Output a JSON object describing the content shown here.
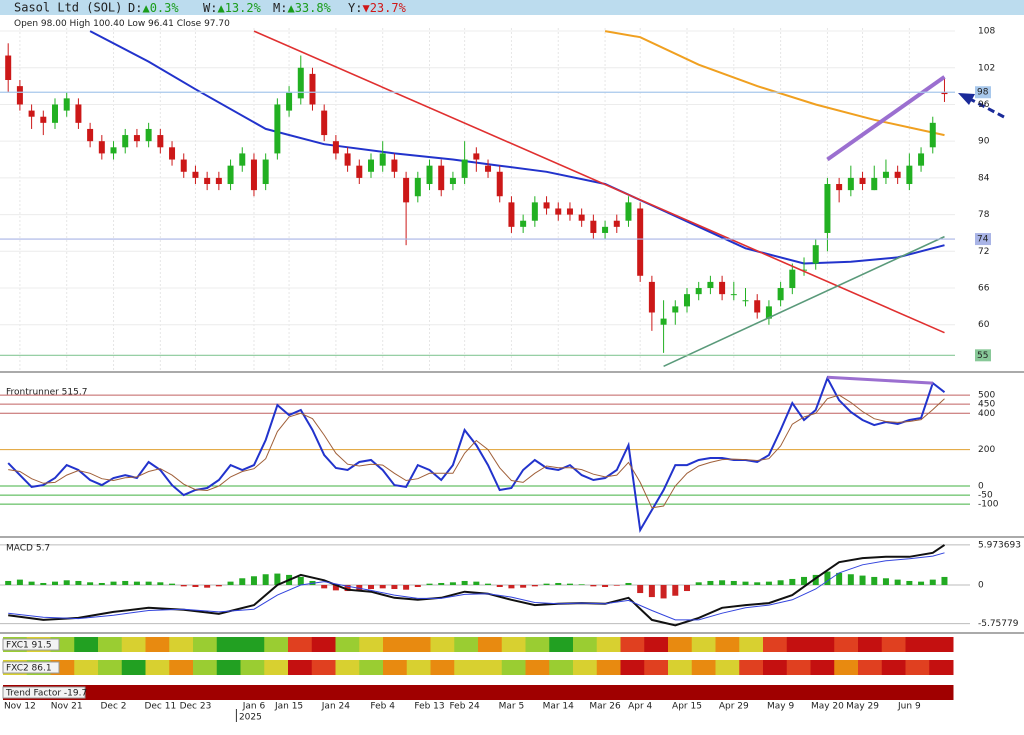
{
  "header": {
    "title": "Sasol Ltd (SOL)",
    "changes": [
      {
        "label": "D:",
        "arrow": "▲",
        "value": "0.3%",
        "color": "#1a9c1a"
      },
      {
        "label": "W:",
        "arrow": "▲",
        "value": "13.2%",
        "color": "#1a9c1a"
      },
      {
        "label": "M:",
        "arrow": "▲",
        "value": "33.8%",
        "color": "#1a9c1a"
      },
      {
        "label": "Y:",
        "arrow": "▼",
        "value": "23.7%",
        "color": "#d01818"
      }
    ],
    "ohlc": [
      "Open 98.00",
      "High 100.40",
      "Low 96.41",
      "Close 97.70"
    ]
  },
  "chart_data": [
    {
      "type": "candlestick",
      "up_color": "#22b022",
      "down_color": "#cc1818",
      "xlim": [
        -0.7,
        80.9
      ],
      "ylim": [
        52.6,
        108.5
      ],
      "yticks": [
        60,
        66,
        72,
        78,
        84,
        90,
        96,
        102,
        108
      ],
      "grid": true,
      "xticks": [
        {
          "value": 1,
          "label": "Nov 12"
        },
        {
          "value": 5,
          "label": "Nov 21"
        },
        {
          "value": 9,
          "label": "Dec 2"
        },
        {
          "value": 13,
          "label": "Dec 11"
        },
        {
          "value": 16,
          "label": "Dec 23"
        },
        {
          "value": 21,
          "label": "Jan 6"
        },
        {
          "value": 24,
          "label": "Jan 15"
        },
        {
          "value": 28,
          "label": "Jan 24"
        },
        {
          "value": 32,
          "label": "Feb 4"
        },
        {
          "value": 36,
          "label": "Feb 13"
        },
        {
          "value": 39,
          "label": "Feb 24"
        },
        {
          "value": 43,
          "label": "Mar 5"
        },
        {
          "value": 47,
          "label": "Mar 14"
        },
        {
          "value": 51,
          "label": "Mar 26"
        },
        {
          "value": 54,
          "label": "Apr 4"
        },
        {
          "value": 58,
          "label": "Apr 15"
        },
        {
          "value": 62,
          "label": "Apr 29"
        },
        {
          "value": 66,
          "label": "May 9"
        },
        {
          "value": 70,
          "label": "May 20"
        },
        {
          "value": 73,
          "label": "May 29"
        },
        {
          "value": 77,
          "label": "Jun 9"
        }
      ],
      "year_ticks": [
        {
          "value": 19.5,
          "label": "2025"
        }
      ],
      "open": [
        104,
        99,
        95,
        94,
        93,
        95,
        96,
        92,
        90,
        88,
        89,
        91,
        90,
        91,
        89,
        87,
        85,
        84,
        84,
        83,
        86,
        87,
        83,
        88,
        95,
        97,
        101,
        95,
        90,
        88,
        86,
        85,
        86,
        87,
        84,
        81,
        83,
        86,
        83,
        84,
        88,
        86,
        85,
        80,
        76,
        77,
        80,
        79,
        79,
        78,
        77,
        75,
        77,
        77,
        79,
        67,
        60,
        62,
        63,
        65,
        66,
        67,
        65,
        64,
        64,
        61,
        64,
        66,
        69,
        70,
        75,
        83,
        82,
        84,
        82,
        84,
        85,
        83,
        86,
        89,
        98
      ],
      "high": [
        106,
        100,
        96,
        95,
        97,
        98,
        97,
        93,
        91,
        90,
        92,
        92,
        93,
        92,
        90,
        88,
        86,
        85,
        85,
        87,
        89,
        88,
        88,
        97,
        99,
        104,
        102,
        96,
        91,
        89,
        87,
        88,
        90,
        88,
        85,
        85,
        87,
        87,
        85,
        90,
        89,
        87,
        86,
        81,
        78,
        81,
        81,
        80,
        80,
        79,
        78,
        77,
        78,
        81,
        80,
        68,
        64,
        64,
        66,
        67,
        68,
        68,
        67,
        66,
        65,
        64,
        67,
        70,
        71,
        74,
        84,
        84,
        86,
        85,
        86,
        87,
        86,
        88,
        89,
        94,
        100.4
      ],
      "low": [
        98,
        95,
        92,
        91,
        92,
        94,
        92,
        89,
        87,
        87,
        88,
        89,
        89,
        88,
        86,
        84,
        83,
        82,
        82,
        82,
        85,
        81,
        82,
        87,
        94,
        96,
        95,
        90,
        87,
        85,
        83,
        84,
        85,
        84,
        73,
        80,
        82,
        81,
        82,
        83,
        85,
        84,
        80,
        75,
        75,
        76,
        78,
        77,
        77,
        76,
        74,
        74,
        75,
        76,
        67,
        59,
        55.4,
        60,
        62,
        64,
        65,
        64,
        64,
        63,
        61,
        60,
        63,
        65,
        68,
        69,
        72,
        80,
        81,
        82,
        82,
        83,
        83,
        82,
        85,
        88,
        96.41
      ],
      "close": [
        100,
        96,
        94,
        93,
        96,
        97,
        93,
        90,
        88,
        89,
        91,
        90,
        92,
        89,
        87,
        85,
        84,
        83,
        83,
        86,
        88,
        82,
        87,
        96,
        98,
        102,
        96,
        91,
        88,
        86,
        84,
        87,
        88,
        85,
        80,
        84,
        86,
        82,
        84,
        87,
        87,
        85,
        81,
        76,
        77,
        80,
        79,
        78,
        78,
        77,
        75,
        76,
        76,
        80,
        68,
        62,
        61,
        63,
        65,
        66,
        67,
        65,
        65,
        64,
        62,
        63,
        66,
        69,
        69,
        73,
        83,
        82,
        84,
        83,
        84,
        85,
        84,
        86,
        88,
        93,
        97.7
      ],
      "moving_averages": [
        {
          "color": "#2233cc",
          "x": [
            7,
            12,
            16,
            22,
            27,
            33,
            38,
            42,
            46,
            51,
            55,
            59,
            63,
            68,
            72,
            76,
            80
          ],
          "values": [
            108,
            103,
            98.5,
            92,
            89.5,
            88,
            87,
            86,
            85,
            83,
            79.5,
            76,
            72.5,
            70,
            70.3,
            71,
            73
          ]
        },
        {
          "color": "#f0a020",
          "x": [
            51,
            54,
            59,
            64,
            69,
            74,
            80
          ],
          "values": [
            108,
            107,
            102.5,
            99,
            96,
            93.5,
            91
          ]
        }
      ],
      "trendlines": [
        {
          "color": "#e03030",
          "x": [
            21,
            80
          ],
          "values": [
            108,
            58.7
          ]
        },
        {
          "color": "#5a9a7a",
          "x": [
            56,
            80
          ],
          "values": [
            53.2,
            74.4
          ]
        },
        {
          "color": "#9b6fd0",
          "x": [
            70,
            80
          ],
          "values": [
            87,
            100.5
          ]
        }
      ],
      "levels": [
        {
          "value": 98,
          "color": "#a8c8ec"
        },
        {
          "value": 74,
          "color": "#a9b4e6"
        },
        {
          "value": 55,
          "color": "#88c898"
        }
      ]
    },
    {
      "type": "line",
      "title": "Frontrunner 515.7",
      "ylim": [
        -275,
        605
      ],
      "yticks": [
        500,
        450,
        400,
        200,
        0,
        -50,
        -100
      ],
      "tick_colors": [
        "#c06060",
        "#c06060",
        "#c06060",
        "#e0a030",
        "#40b040",
        "#40b040",
        "#40b040"
      ],
      "series": [
        {
          "color": "#2233cc",
          "values": [
            126,
            60,
            -5,
            5,
            44,
            115,
            88,
            33,
            5,
            44,
            60,
            44,
            132,
            88,
            5,
            -50,
            -22,
            -11,
            33,
            115,
            88,
            115,
            253,
            445,
            390,
            418,
            308,
            170,
            99,
            88,
            132,
            143,
            88,
            5,
            -5,
            115,
            88,
            33,
            115,
            308,
            225,
            115,
            -22,
            -11,
            88,
            143,
            99,
            88,
            115,
            60,
            33,
            44,
            88,
            225,
            -242,
            -132,
            -22,
            115,
            115,
            143,
            154,
            154,
            143,
            143,
            132,
            170,
            308,
            456,
            363,
            418,
            593,
            472,
            407,
            363,
            335,
            352,
            341,
            363,
            374,
            566,
            515.7
          ]
        },
        {
          "color": "#a0603a",
          "values": [
            90,
            80,
            40,
            15,
            20,
            60,
            85,
            70,
            40,
            30,
            45,
            50,
            80,
            95,
            60,
            10,
            -20,
            -25,
            0,
            50,
            80,
            95,
            150,
            300,
            380,
            400,
            370,
            280,
            180,
            120,
            110,
            120,
            115,
            70,
            30,
            40,
            70,
            70,
            70,
            180,
            250,
            200,
            100,
            30,
            20,
            70,
            110,
            100,
            100,
            90,
            65,
            50,
            60,
            130,
            20,
            -120,
            -110,
            0,
            70,
            110,
            130,
            145,
            148,
            145,
            140,
            150,
            220,
            340,
            380,
            400,
            480,
            500,
            460,
            410,
            370,
            355,
            350,
            355,
            365,
            420,
            480
          ]
        }
      ],
      "trendlines": [
        {
          "color": "#9b6fd0",
          "x": [
            70,
            79
          ],
          "values": [
            598,
            566
          ]
        }
      ]
    },
    {
      "type": "macd",
      "title": "MACD 5.7",
      "ylim": [
        -7,
        6.7
      ],
      "yticks": [
        5.973693,
        0,
        -5.75779
      ],
      "series": [
        {
          "color": "#111111",
          "x": [
            0,
            3,
            6,
            9,
            12,
            15,
            18,
            21,
            23,
            25,
            27,
            29,
            31,
            33,
            35,
            37,
            39,
            41,
            43,
            45,
            47,
            49,
            51,
            53,
            55,
            57,
            59,
            61,
            63,
            65,
            67,
            69,
            71,
            73,
            75,
            77,
            79,
            80
          ],
          "values": [
            -4.5,
            -5.2,
            -4.9,
            -4,
            -3.4,
            -3.7,
            -4.3,
            -3,
            0,
            1.5,
            0.7,
            -0.7,
            -1,
            -1.9,
            -2.2,
            -1.9,
            -1,
            -1.3,
            -2.2,
            -3,
            -2.8,
            -2.7,
            -2.8,
            -1.9,
            -5.2,
            -6,
            -4.9,
            -3.4,
            -3,
            -2.7,
            -1.5,
            1,
            3.4,
            4,
            4.2,
            4.2,
            4.8,
            5.97
          ]
        },
        {
          "color": "#3344dd",
          "x": [
            0,
            3,
            6,
            9,
            12,
            15,
            18,
            21,
            23,
            25,
            27,
            29,
            31,
            33,
            35,
            37,
            39,
            41,
            43,
            45,
            47,
            49,
            51,
            53,
            55,
            57,
            59,
            61,
            63,
            65,
            67,
            69,
            71,
            73,
            75,
            77,
            79,
            80
          ],
          "values": [
            -4.2,
            -4.8,
            -5,
            -4.5,
            -3.8,
            -3.6,
            -4,
            -3.6,
            -1.5,
            0,
            0.5,
            -0.2,
            -0.8,
            -1.5,
            -2,
            -2,
            -1.4,
            -1.3,
            -1.8,
            -2.6,
            -2.8,
            -2.7,
            -2.8,
            -2.3,
            -3.8,
            -5.2,
            -5.2,
            -4.2,
            -3.4,
            -3,
            -2.2,
            -0.6,
            1.8,
            3,
            3.6,
            3.9,
            4.3,
            4.8
          ]
        }
      ],
      "histogram": {
        "up_color": "#22aa22",
        "down_color": "#cc2222",
        "values": [
          0.6,
          0.8,
          0.5,
          0.3,
          0.5,
          0.7,
          0.6,
          0.4,
          0.3,
          0.5,
          0.6,
          0.5,
          0.5,
          0.4,
          0.2,
          -0.2,
          -0.3,
          -0.4,
          -0.2,
          0.5,
          1.0,
          1.3,
          1.6,
          1.7,
          1.5,
          1.2,
          0.6,
          -0.5,
          -0.8,
          -0.9,
          -0.8,
          -0.6,
          -0.5,
          -0.6,
          -0.7,
          -0.3,
          0.2,
          0.3,
          0.4,
          0.6,
          0.5,
          0.2,
          -0.3,
          -0.5,
          -0.4,
          -0.2,
          0.2,
          0.3,
          0.2,
          0.1,
          -0.2,
          -0.3,
          -0.1,
          0.3,
          -1.2,
          -1.8,
          -2.0,
          -1.6,
          -0.9,
          0.4,
          0.6,
          0.7,
          0.6,
          0.5,
          0.4,
          0.5,
          0.7,
          0.9,
          1.2,
          1.5,
          2.0,
          1.8,
          1.6,
          1.4,
          1.2,
          1.0,
          0.8,
          0.6,
          0.5,
          0.8,
          1.2
        ]
      }
    },
    {
      "type": "heatmap",
      "rows": [
        {
          "label": "FXC1 91.5",
          "colors": [
            "#9acd32",
            "#d8d030",
            "#9acd32",
            "#22a022",
            "#9acd32",
            "#d8d030",
            "#e88a10",
            "#d8d030",
            "#9acd32",
            "#22a022",
            "#22a022",
            "#9acd32",
            "#e04020",
            "#c41010",
            "#9acd32",
            "#d8d030",
            "#e88a10",
            "#e88a10",
            "#d8d030",
            "#9acd32",
            "#e88a10",
            "#d8d030",
            "#9acd32",
            "#22a022",
            "#9acd32",
            "#d8d030",
            "#e04020",
            "#c41010",
            "#e88a10",
            "#d8d030",
            "#e88a10",
            "#d8d030",
            "#e04020",
            "#c41010",
            "#c41010",
            "#e04020",
            "#c41010",
            "#e04020",
            "#c41010",
            "#c41010"
          ]
        },
        {
          "label": "FXC2 86.1",
          "colors": [
            "#d8d030",
            "#9acd32",
            "#e88a10",
            "#d8d030",
            "#9acd32",
            "#22a022",
            "#d8d030",
            "#e88a10",
            "#9acd32",
            "#22a022",
            "#9acd32",
            "#d8d030",
            "#c41010",
            "#e04020",
            "#d8d030",
            "#9acd32",
            "#e88a10",
            "#d8d030",
            "#e88a10",
            "#d8d030",
            "#d8d030",
            "#9acd32",
            "#e88a10",
            "#9acd32",
            "#d8d030",
            "#e88a10",
            "#c41010",
            "#e04020",
            "#d8d030",
            "#e88a10",
            "#d8d030",
            "#e04020",
            "#c41010",
            "#e04020",
            "#c41010",
            "#e88a10",
            "#e04020",
            "#c41010",
            "#e04020",
            "#c41010"
          ]
        },
        {
          "label": "Trend Factor -19.7",
          "colors": [
            "#a00000"
          ]
        }
      ]
    }
  ]
}
